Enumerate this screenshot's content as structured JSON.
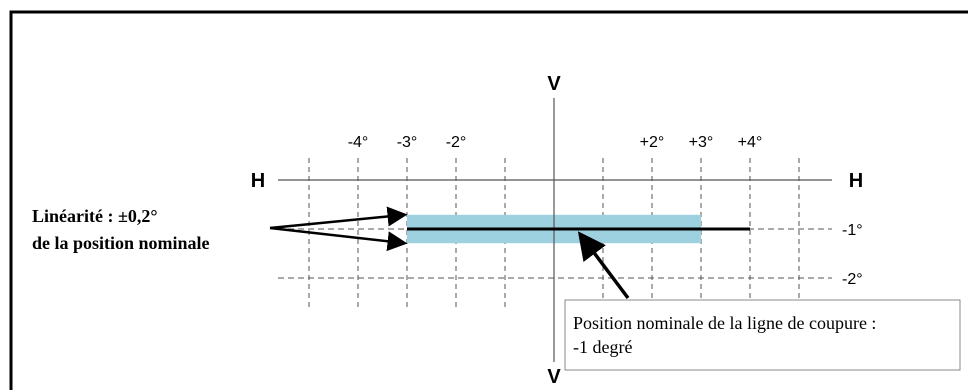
{
  "colors": {
    "band": "#9ed1e0",
    "frame": "#000000",
    "grid": "#555555",
    "axis": "#555555",
    "cutoff": "#000000",
    "callout_border": "#888888"
  },
  "diagram": {
    "axis_v_top": "V",
    "axis_v_bottom": "V",
    "axis_h_left": "H",
    "axis_h_right": "H",
    "x_tick_labels": [
      {
        "value": -4,
        "label": "-4°"
      },
      {
        "value": -3,
        "label": "-3°"
      },
      {
        "value": -2,
        "label": "-2°"
      },
      {
        "value": 2,
        "label": "+2°"
      },
      {
        "value": 3,
        "label": "+3°"
      },
      {
        "value": 4,
        "label": "+4°"
      }
    ],
    "y_tick_labels": [
      {
        "value": -1,
        "label": "-1°"
      },
      {
        "value": -2,
        "label": "-2°"
      }
    ],
    "grid_x_values": [
      -5,
      -4,
      -3,
      -2,
      -1,
      1,
      2,
      3,
      4,
      5
    ],
    "grid_y_values": [
      -1,
      -2
    ],
    "tolerance_band": {
      "x_from": -3,
      "x_to": 3,
      "y_center": -1,
      "half_width_deg": 0.2
    },
    "cutoff_line": {
      "x_from": -3,
      "x_to": 4,
      "y": -1
    },
    "linearity_label": {
      "line1": "Linéarité : ±0,2°",
      "line2": "de la position nominale"
    },
    "nominal_callout": {
      "line1": "Position nominale de la ligne de coupure :",
      "line2": "-1 degré"
    }
  }
}
